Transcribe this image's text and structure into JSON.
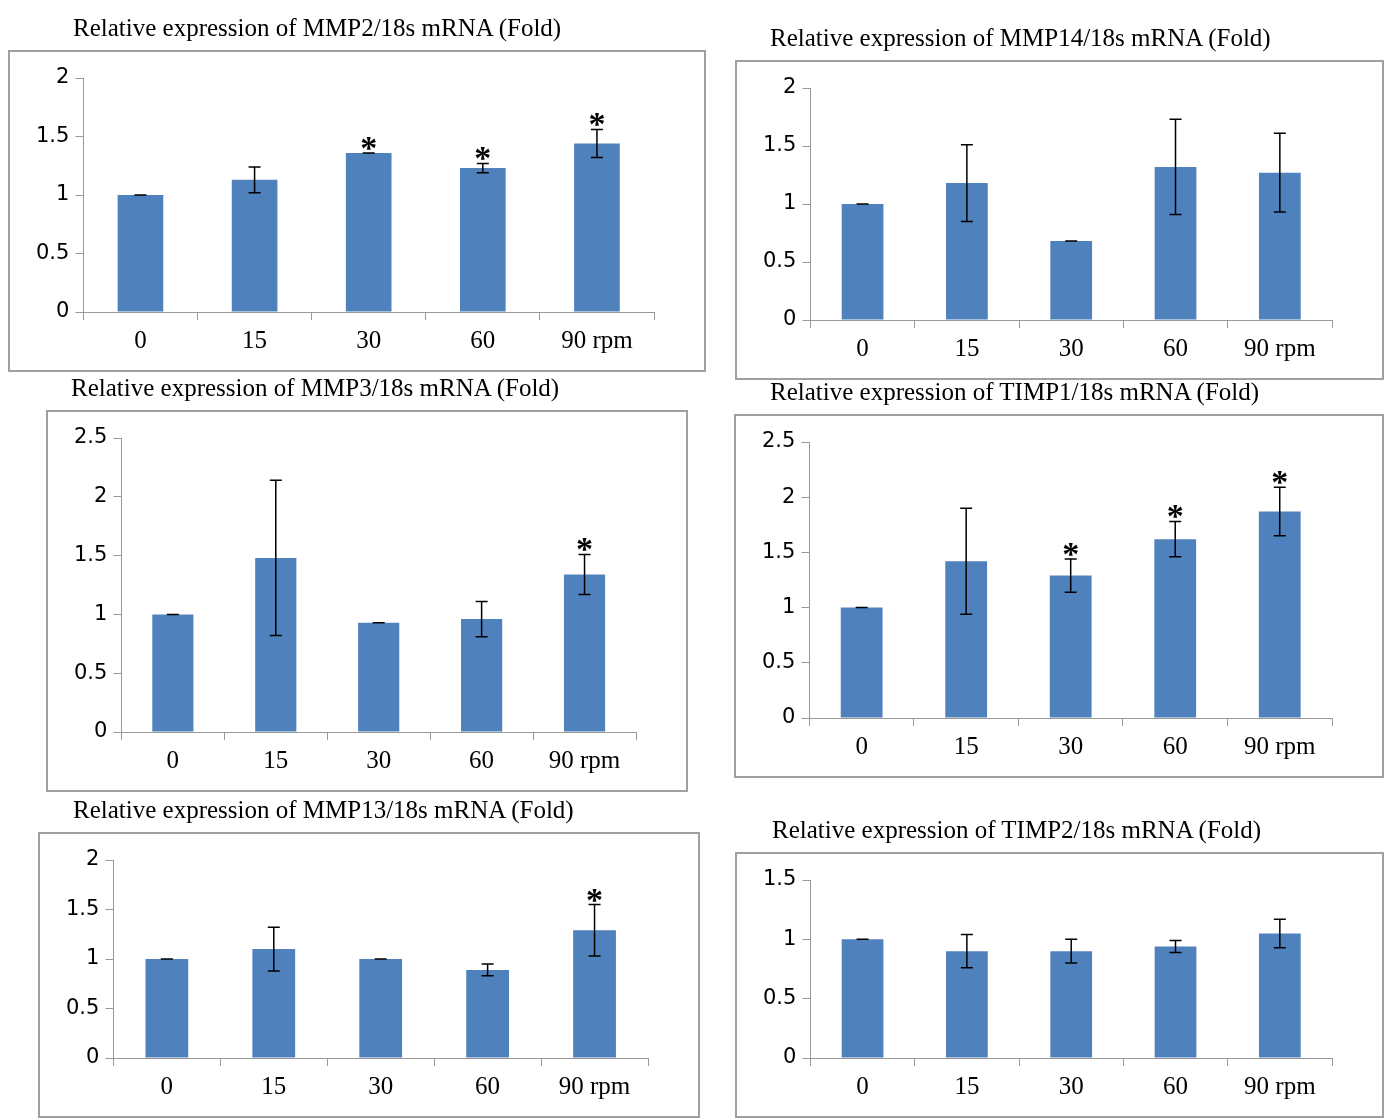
{
  "chart_data": [
    {
      "type": "bar",
      "title": "Relative expression of MMP2/18s mRNA (Fold)",
      "categories": [
        "0",
        "15",
        "30",
        "60",
        "90 rpm"
      ],
      "values": [
        1.0,
        1.13,
        1.36,
        1.23,
        1.44
      ],
      "errors": [
        0,
        0.11,
        0,
        0.04,
        0.12
      ],
      "color": "#4f81bd",
      "ylim": [
        0,
        2
      ],
      "yticks": [
        0,
        0.5,
        1,
        1.5,
        2
      ],
      "grid": false,
      "annotations": [
        {
          "text": "*",
          "x": "30",
          "y": 1.36
        },
        {
          "text": "*",
          "x": "60",
          "y": 1.27
        },
        {
          "text": "*",
          "x": "90 rpm",
          "y": 1.56
        }
      ]
    },
    {
      "type": "bar",
      "title": "Relative expression of MMP14/18s mRNA (Fold)",
      "categories": [
        "0",
        "15",
        "30",
        "60",
        "90 rpm"
      ],
      "values": [
        1.0,
        1.18,
        0.68,
        1.32,
        1.27
      ],
      "errors": [
        0,
        0.33,
        0,
        0.41,
        0.34
      ],
      "color": "#4f81bd",
      "ylim": [
        0,
        2
      ],
      "yticks": [
        0,
        0.5,
        1,
        1.5,
        2
      ],
      "grid": false
    },
    {
      "type": "bar",
      "title": "Relative expression of MMP3/18s mRNA (Fold)",
      "categories": [
        "0",
        "15",
        "30",
        "60",
        "90 rpm"
      ],
      "values": [
        1.0,
        1.48,
        0.93,
        0.96,
        1.34
      ],
      "errors": [
        0,
        0.66,
        0,
        0.15,
        0.17
      ],
      "color": "#4f81bd",
      "ylim": [
        0,
        2.5
      ],
      "yticks": [
        0,
        0.5,
        1,
        1.5,
        2,
        2.5
      ],
      "grid": false,
      "annotations": [
        {
          "text": "*",
          "x": "90 rpm",
          "y": 1.51
        }
      ]
    },
    {
      "type": "bar",
      "title": "Relative expression of TIMP1/18s mRNA (Fold)",
      "categories": [
        "0",
        "15",
        "30",
        "60",
        "90 rpm"
      ],
      "values": [
        1.0,
        1.42,
        1.29,
        1.62,
        1.87
      ],
      "errors": [
        0,
        0.48,
        0.15,
        0.16,
        0.22
      ],
      "color": "#4f81bd",
      "ylim": [
        0,
        2.5
      ],
      "yticks": [
        0,
        0.5,
        1,
        1.5,
        2,
        2.5
      ],
      "grid": false,
      "annotations": [
        {
          "text": "*",
          "x": "30",
          "y": 1.44
        },
        {
          "text": "*",
          "x": "60",
          "y": 1.78
        },
        {
          "text": "*",
          "x": "90 rpm",
          "y": 2.09
        }
      ]
    },
    {
      "type": "bar",
      "title": "Relative expression of MMP13/18s mRNA (Fold)",
      "categories": [
        "0",
        "15",
        "30",
        "60",
        "90 rpm"
      ],
      "values": [
        1.0,
        1.1,
        1.0,
        0.89,
        1.29
      ],
      "errors": [
        0,
        0.22,
        0,
        0.06,
        0.26
      ],
      "color": "#4f81bd",
      "ylim": [
        0,
        2
      ],
      "yticks": [
        0,
        0.5,
        1,
        1.5,
        2
      ],
      "grid": false,
      "annotations": [
        {
          "text": "*",
          "x": "90 rpm",
          "y": 1.55
        }
      ]
    },
    {
      "type": "bar",
      "title": "Relative expression of TIMP2/18s mRNA (Fold)",
      "categories": [
        "0",
        "15",
        "30",
        "60",
        "90 rpm"
      ],
      "values": [
        1.0,
        0.9,
        0.9,
        0.94,
        1.05
      ],
      "errors": [
        0,
        0.14,
        0.1,
        0.05,
        0.12
      ],
      "color": "#4f81bd",
      "ylim": [
        0,
        1.5
      ],
      "yticks": [
        0,
        0.5,
        1,
        1.5
      ],
      "grid": false
    }
  ]
}
